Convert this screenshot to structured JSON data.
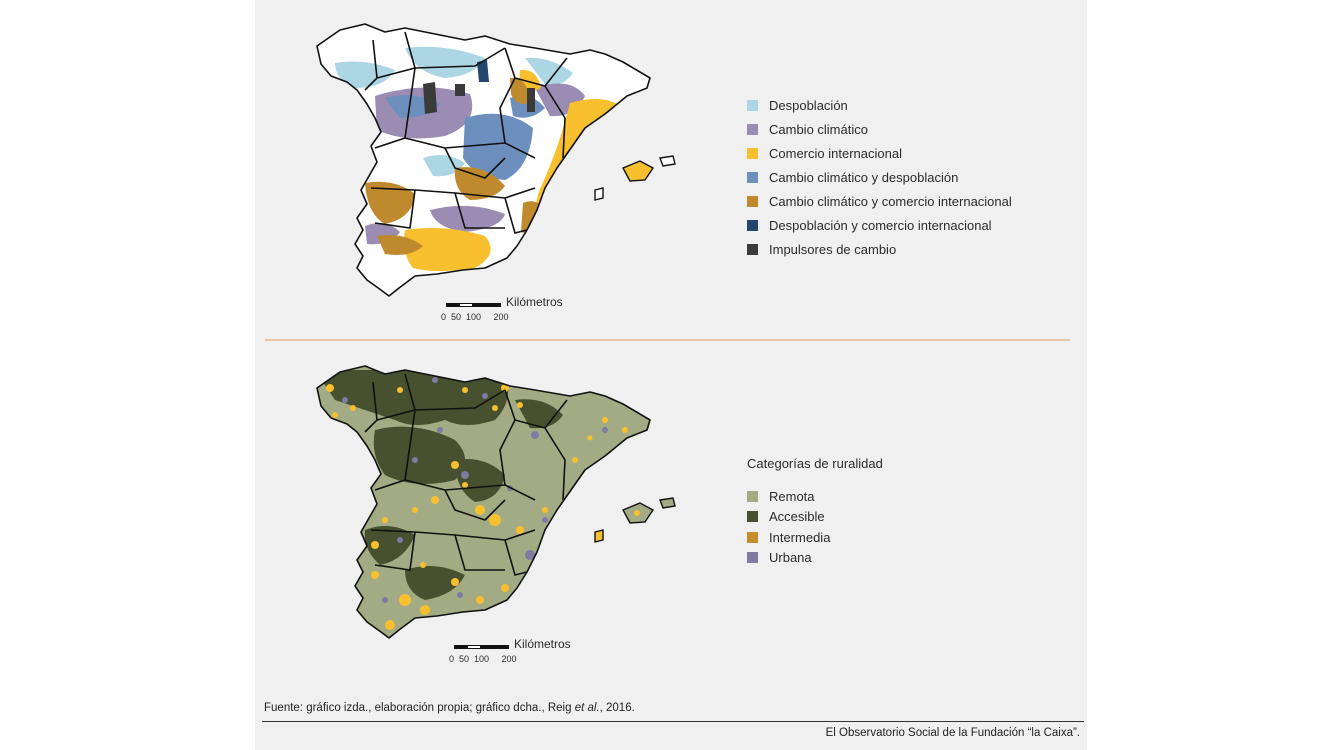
{
  "colors": {
    "panel_bg": "#f0f0f0",
    "divider": "#e7c9a8",
    "despoblacion": "#acd6e4",
    "cambio_climatico": "#9b8cb4",
    "comercio_internacional": "#f8c02e",
    "cambio_y_despoblacion": "#6d8fbe",
    "cambio_y_comercio": "#bf8a2d",
    "despoblacion_y_comercio": "#24456e",
    "impulsores": "#3a3a38",
    "remota": "#a2ab83",
    "accesible": "#47502f",
    "intermedia": "#c48e2a",
    "urbana": "#7f7aa2"
  },
  "map_top": {
    "legend": [
      {
        "label": "Despoblación",
        "color": "#acd6e4"
      },
      {
        "label": "Cambio climático",
        "color": "#9b8cb4"
      },
      {
        "label": "Comercio internacional",
        "color": "#f8c02e"
      },
      {
        "label": "Cambio climático y despoblación",
        "color": "#6d8fbe"
      },
      {
        "label": "Cambio climático y comercio internacional",
        "color": "#bf8a2d"
      },
      {
        "label": "Despoblación y comercio internacional",
        "color": "#24456e"
      },
      {
        "label": "Impulsores de cambio",
        "color": "#3a3a38"
      }
    ],
    "scale_label": "Kilómetros",
    "scale_ticks": "0  50  100     200"
  },
  "map_bottom": {
    "legend_title": "Categorías de ruralidad",
    "legend": [
      {
        "label": "Remota",
        "color": "#a2ab83"
      },
      {
        "label": "Accesible",
        "color": "#47502f"
      },
      {
        "label": "Intermedia",
        "color": "#c48e2a"
      },
      {
        "label": "Urbana",
        "color": "#7f7aa2"
      }
    ],
    "scale_label": "Kilómetros",
    "scale_ticks": "0  50  100     200"
  },
  "source": {
    "prefix": "Fuente: gráfico izda., elaboración propia; gráfico dcha., Reig ",
    "italic": "et al.",
    "suffix": ", 2016."
  },
  "credit": "El Observatorio Social de la Fundación “la Caixa”."
}
